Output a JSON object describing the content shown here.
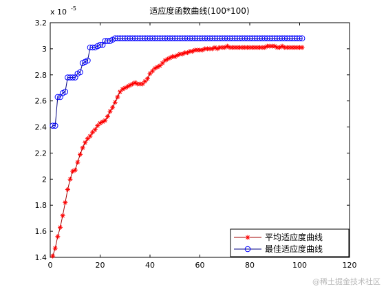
{
  "chart_data": {
    "type": "line",
    "title": "适应度函数曲线(100*100)",
    "xlabel": "",
    "ylabel": "",
    "y_scale_label": "x 10",
    "y_scale_exponent": "-5",
    "xlim": [
      0,
      120
    ],
    "ylim": [
      1.4,
      3.2
    ],
    "x_ticks": [
      0,
      20,
      40,
      60,
      80,
      100,
      120
    ],
    "y_ticks": [
      1.4,
      1.6,
      1.8,
      2.0,
      2.2,
      2.4,
      2.6,
      2.8,
      3.0,
      3.2
    ],
    "x_tick_labels": [
      "0",
      "20",
      "40",
      "60",
      "80",
      "100",
      "120"
    ],
    "y_tick_labels": [
      "1.4",
      "1.6",
      "1.8",
      "2",
      "2.2",
      "2.4",
      "2.6",
      "2.8",
      "3",
      "3.2"
    ],
    "grid": false,
    "legend_position": "bottom-right",
    "series": [
      {
        "name": "平均适应度曲线",
        "color": "#ff0000",
        "line_color": "#a00000",
        "marker": "star",
        "x": [
          1,
          2,
          3,
          4,
          5,
          6,
          7,
          8,
          9,
          10,
          11,
          12,
          13,
          14,
          15,
          16,
          17,
          18,
          19,
          20,
          21,
          22,
          23,
          24,
          25,
          26,
          27,
          28,
          29,
          30,
          31,
          32,
          33,
          34,
          35,
          36,
          37,
          38,
          39,
          40,
          41,
          42,
          43,
          44,
          45,
          46,
          47,
          48,
          49,
          50,
          51,
          52,
          53,
          54,
          55,
          56,
          57,
          58,
          59,
          60,
          61,
          62,
          63,
          64,
          65,
          66,
          67,
          68,
          69,
          70,
          71,
          72,
          73,
          74,
          75,
          76,
          77,
          78,
          79,
          80,
          81,
          82,
          83,
          84,
          85,
          86,
          87,
          88,
          89,
          90,
          91,
          92,
          93,
          94,
          95,
          96,
          97,
          98,
          99,
          100,
          101
        ],
        "values": [
          1.41,
          1.47,
          1.56,
          1.63,
          1.72,
          1.82,
          1.92,
          2.0,
          2.06,
          2.07,
          2.13,
          2.19,
          2.24,
          2.28,
          2.31,
          2.33,
          2.36,
          2.38,
          2.41,
          2.43,
          2.44,
          2.45,
          2.48,
          2.52,
          2.55,
          2.59,
          2.63,
          2.67,
          2.69,
          2.7,
          2.71,
          2.72,
          2.73,
          2.74,
          2.73,
          2.73,
          2.73,
          2.75,
          2.77,
          2.81,
          2.83,
          2.85,
          2.86,
          2.87,
          2.89,
          2.91,
          2.92,
          2.93,
          2.94,
          2.94,
          2.95,
          2.96,
          2.96,
          2.97,
          2.97,
          2.98,
          2.98,
          2.99,
          2.99,
          2.99,
          2.99,
          3.0,
          3.0,
          3.0,
          3.0,
          3.01,
          3.0,
          3.01,
          3.01,
          3.01,
          3.02,
          3.01,
          3.01,
          3.01,
          3.01,
          3.01,
          3.01,
          3.01,
          3.01,
          3.01,
          3.01,
          3.01,
          3.01,
          3.01,
          3.01,
          3.01,
          3.02,
          3.02,
          3.02,
          3.02,
          3.01,
          3.01,
          3.02,
          3.01,
          3.01,
          3.01,
          3.01,
          3.01,
          3.01,
          3.01,
          3.01
        ]
      },
      {
        "name": "最佳适应度曲线",
        "color": "#0000ff",
        "line_color": "#000080",
        "marker": "circle",
        "x": [
          1,
          2,
          3,
          4,
          5,
          6,
          7,
          8,
          9,
          10,
          11,
          12,
          13,
          14,
          15,
          16,
          17,
          18,
          19,
          20,
          21,
          22,
          23,
          24,
          25,
          26,
          27,
          28,
          29,
          30,
          31,
          32,
          33,
          34,
          35,
          36,
          37,
          38,
          39,
          40,
          41,
          42,
          43,
          44,
          45,
          46,
          47,
          48,
          49,
          50,
          51,
          52,
          53,
          54,
          55,
          56,
          57,
          58,
          59,
          60,
          61,
          62,
          63,
          64,
          65,
          66,
          67,
          68,
          69,
          70,
          71,
          72,
          73,
          74,
          75,
          76,
          77,
          78,
          79,
          80,
          81,
          82,
          83,
          84,
          85,
          86,
          87,
          88,
          89,
          90,
          91,
          92,
          93,
          94,
          95,
          96,
          97,
          98,
          99,
          100,
          101
        ],
        "values": [
          2.41,
          2.41,
          2.63,
          2.63,
          2.66,
          2.67,
          2.78,
          2.78,
          2.78,
          2.78,
          2.81,
          2.82,
          2.89,
          2.9,
          2.91,
          3.01,
          3.01,
          3.01,
          3.02,
          3.03,
          3.03,
          3.06,
          3.06,
          3.06,
          3.07,
          3.08,
          3.08,
          3.08,
          3.08,
          3.08,
          3.08,
          3.08,
          3.08,
          3.08,
          3.08,
          3.08,
          3.08,
          3.08,
          3.08,
          3.08,
          3.08,
          3.08,
          3.08,
          3.08,
          3.08,
          3.08,
          3.08,
          3.08,
          3.08,
          3.08,
          3.08,
          3.08,
          3.08,
          3.08,
          3.08,
          3.08,
          3.08,
          3.08,
          3.08,
          3.08,
          3.08,
          3.08,
          3.08,
          3.08,
          3.08,
          3.08,
          3.08,
          3.08,
          3.08,
          3.08,
          3.08,
          3.08,
          3.08,
          3.08,
          3.08,
          3.08,
          3.08,
          3.08,
          3.08,
          3.08,
          3.08,
          3.08,
          3.08,
          3.08,
          3.08,
          3.08,
          3.08,
          3.08,
          3.08,
          3.08,
          3.08,
          3.08,
          3.08,
          3.08,
          3.08,
          3.08,
          3.08,
          3.08,
          3.08,
          3.08,
          3.08
        ]
      }
    ]
  },
  "watermark": "@稀土掘金技术社区"
}
